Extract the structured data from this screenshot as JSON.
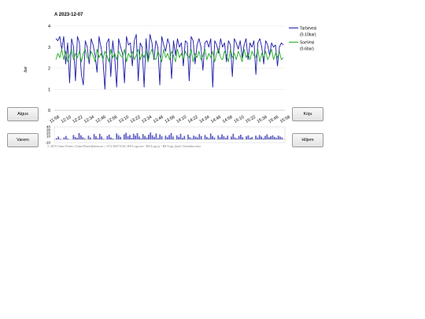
{
  "chart_data": {
    "type": "line",
    "title": "A 2023-12-07",
    "ylabel": "bar",
    "ylim": [
      0,
      4
    ],
    "yticks": [
      "0",
      "1",
      "2",
      "3",
      "4"
    ],
    "xticks": [
      "11:58",
      "12:10",
      "12:22",
      "12:34",
      "12:46",
      "12:58",
      "13:10",
      "13:22",
      "13:34",
      "13:46",
      "13:58",
      "14:10",
      "14:22",
      "14:34",
      "14:46",
      "14:58",
      "15:10",
      "15:22",
      "15:34",
      "15:46",
      "15:58"
    ],
    "legend_placement": "right",
    "grid": true,
    "series": [
      {
        "name": "Tarbevesi",
        "sub": "(0-10bar)",
        "color": "#1a1aaa",
        "values": [
          3.4,
          3.3,
          3.5,
          2.9,
          3.5,
          2.2,
          3.2,
          1.3,
          3.4,
          3.0,
          1.4,
          3.5,
          3.2,
          1.7,
          1.2,
          3.3,
          3.0,
          2.2,
          3.4,
          3.1,
          2.6,
          1.8,
          3.5,
          3.0,
          2.4,
          1.0,
          3.2,
          3.4,
          1.6,
          3.3,
          2.5,
          1.1,
          3.4,
          3.0,
          2.7,
          1.3,
          3.5,
          3.1,
          3.2,
          2.1,
          3.3,
          3.6,
          1.4,
          3.2,
          3.0,
          1.1,
          3.4,
          2.3,
          3.6,
          3.2,
          2.4,
          3.3,
          3.0,
          1.2,
          3.5,
          3.1,
          2.8,
          3.4,
          3.1,
          1.5,
          3.3,
          2.6,
          3.4,
          3.0,
          3.2,
          2.1,
          3.3,
          3.2,
          1.4,
          3.5,
          3.3,
          2.2,
          3.1,
          3.4,
          3.0,
          1.9,
          3.2,
          3.3,
          3.0,
          3.4,
          1.1,
          3.3,
          3.1,
          2.7,
          3.4,
          3.0,
          3.2,
          2.3,
          3.3,
          3.1,
          1.6,
          3.4,
          3.2,
          2.9,
          3.3,
          2.5,
          3.1,
          3.4,
          2.4,
          3.2,
          3.0,
          3.3,
          1.7,
          3.2,
          3.4,
          3.0,
          2.2,
          3.3,
          3.1,
          2.6,
          3.2,
          3.0,
          3.1,
          2.1,
          3.0,
          3.2,
          3.1
        ]
      },
      {
        "name": "SoeVesi",
        "sub": "(0-6bar)",
        "color": "#22aa22",
        "values": [
          2.4,
          2.7,
          2.5,
          2.9,
          2.4,
          2.8,
          2.3,
          2.6,
          2.9,
          2.4,
          2.7,
          2.5,
          2.8,
          2.3,
          2.7,
          2.9,
          2.5,
          2.4,
          2.8,
          2.6,
          2.3,
          2.9,
          2.5,
          2.7,
          2.4,
          2.8,
          2.6,
          2.3,
          2.9,
          2.5,
          2.7,
          2.4,
          2.8,
          2.6,
          2.5,
          2.9,
          2.3,
          2.7,
          2.5,
          2.8,
          2.4,
          2.6,
          2.9,
          2.4,
          2.7,
          2.5,
          2.8,
          2.3,
          2.7,
          2.9,
          2.5,
          2.4,
          2.8,
          2.6,
          2.3,
          2.9,
          2.5,
          2.7,
          2.4,
          2.8,
          2.6,
          2.3,
          2.9,
          2.5,
          2.7,
          2.4,
          2.8,
          2.6,
          2.5,
          2.9,
          2.3,
          2.7,
          2.5,
          2.8,
          2.4,
          2.6,
          2.9,
          2.4,
          2.7,
          2.5,
          2.8,
          2.3,
          2.7,
          2.9,
          2.5,
          2.4,
          2.8,
          2.6,
          2.3,
          2.9,
          2.5,
          2.7,
          2.4,
          2.8,
          2.6,
          2.3,
          2.9,
          2.5,
          2.7,
          2.4,
          2.8,
          2.6,
          2.5,
          2.9,
          2.3,
          2.7,
          2.5,
          2.8,
          2.4,
          2.6,
          2.9,
          2.4,
          2.7,
          2.5,
          2.8,
          2.4,
          2.5
        ]
      }
    ],
    "sub_chart": {
      "type": "bar",
      "ylim": [
        -10,
        40
      ],
      "yticks": [
        "40",
        "30",
        "20",
        "10",
        "-10"
      ],
      "color": "#5a5ac8",
      "values": [
        4,
        9,
        2,
        0,
        6,
        11,
        3,
        0,
        0,
        14,
        8,
        5,
        20,
        13,
        7,
        3,
        0,
        12,
        6,
        0,
        17,
        10,
        4,
        18,
        9,
        2,
        0,
        11,
        15,
        6,
        3,
        0,
        19,
        13,
        8,
        0,
        16,
        21,
        10,
        14,
        5,
        18,
        12,
        20,
        9,
        3,
        17,
        11,
        6,
        15,
        22,
        13,
        8,
        19,
        4,
        16,
        10,
        0,
        12,
        7,
        14,
        20,
        9,
        0,
        13,
        8,
        18,
        5,
        11,
        0,
        15,
        7,
        3,
        12,
        9,
        6,
        17,
        10,
        0,
        14,
        8,
        4,
        19,
        11,
        6,
        0,
        13,
        7,
        16,
        10,
        5,
        12,
        0,
        9,
        18,
        6,
        3,
        11,
        15,
        7,
        0,
        10,
        13,
        5,
        8,
        0,
        12,
        6,
        14,
        9,
        4,
        11,
        16,
        7,
        10,
        13,
        8,
        5,
        12,
        9,
        6
      ]
    }
  },
  "buttons": {
    "algus": "Algus",
    "varem": "Varem",
    "koju": "Koju",
    "hiljem": "Hiljem"
  },
  "footer": "© 2015 Urmo Potter | Urmo.Potter@mtm.ee | +372 56471316 | RS-Logi.exe - RS-Logi.js - RS-Logi_html | Uuendas eesti"
}
